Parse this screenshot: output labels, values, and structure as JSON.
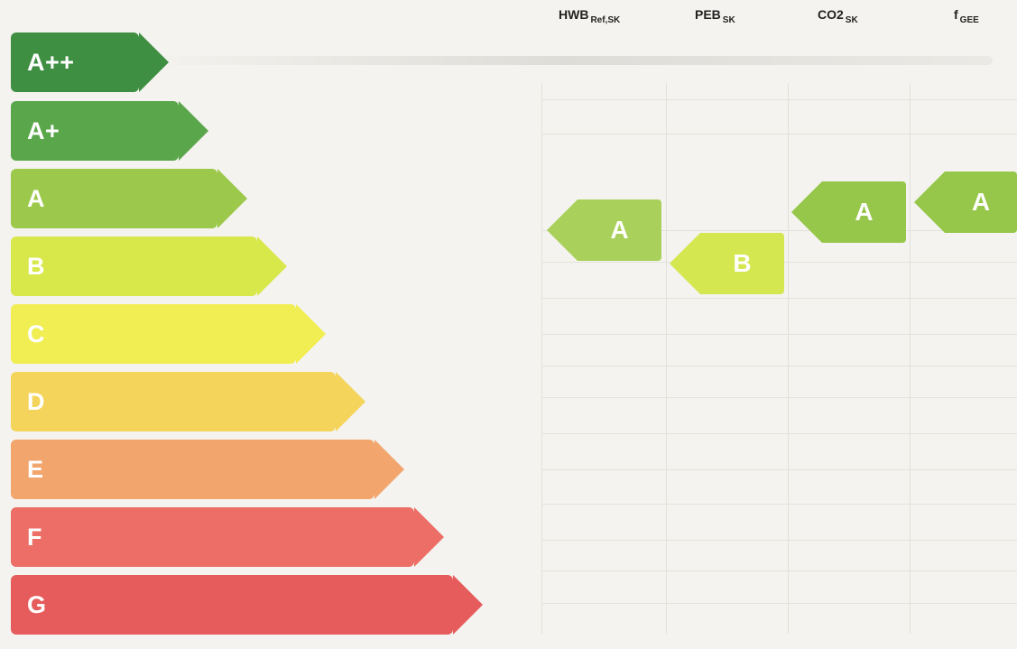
{
  "columns": [
    {
      "label": "HWB",
      "sub": "Ref,SK"
    },
    {
      "label": "PEB",
      "sub": "SK"
    },
    {
      "label": "CO2",
      "sub": "SK"
    },
    {
      "label": "f",
      "sub": "GEE"
    }
  ],
  "classes": [
    {
      "label": "A++",
      "color": "#3f8f43"
    },
    {
      "label": "A+",
      "color": "#5aa64a"
    },
    {
      "label": "A",
      "color": "#9cc94b"
    },
    {
      "label": "B",
      "color": "#d8e84a"
    },
    {
      "label": "C",
      "color": "#f0ee52"
    },
    {
      "label": "D",
      "color": "#f4d45a"
    },
    {
      "label": "E",
      "color": "#f2a66e"
    },
    {
      "label": "F",
      "color": "#ec6e66"
    },
    {
      "label": "G",
      "color": "#e65c5c"
    }
  ],
  "ratings": {
    "hwb": {
      "value": "A",
      "color": "#a9d05a"
    },
    "peb": {
      "value": "B",
      "color": "#d4e650"
    },
    "co2": {
      "value": "A",
      "color": "#96c64a"
    },
    "fgee": {
      "value": "A",
      "color": "#96c64a"
    }
  }
}
